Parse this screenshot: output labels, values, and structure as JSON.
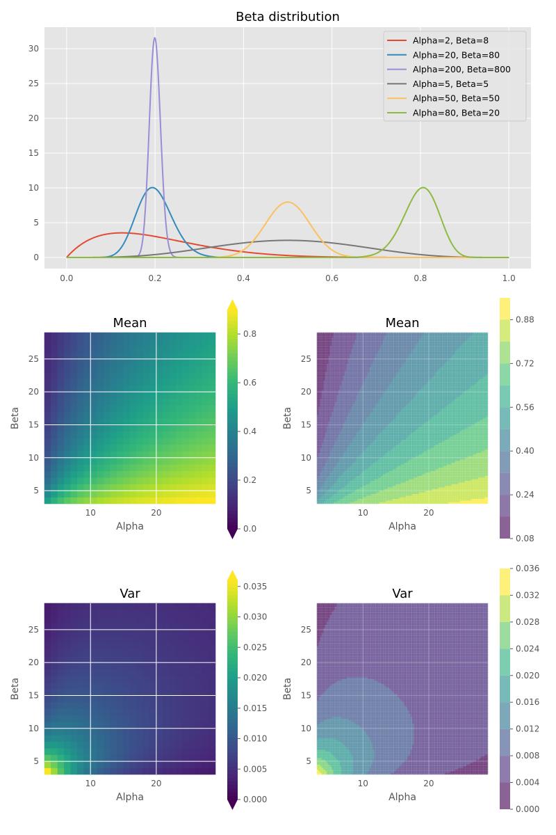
{
  "chart_data": [
    {
      "type": "line",
      "title": "Beta distribution",
      "xlabel": "",
      "ylabel": "",
      "xlim": [
        -0.05,
        1.05
      ],
      "ylim": [
        -1.6,
        33.1
      ],
      "xticks": [
        "0.0",
        "0.2",
        "0.4",
        "0.6",
        "0.8",
        "1.0"
      ],
      "yticks": [
        "0",
        "5",
        "10",
        "15",
        "20",
        "25",
        "30"
      ],
      "grid": true,
      "legend": "top-right",
      "series": [
        {
          "name": "Alpha=2, Beta=8",
          "alpha": 2,
          "beta": 8,
          "color": "#e24a33",
          "peak_y": 3.5
        },
        {
          "name": "Alpha=20, Beta=80",
          "alpha": 20,
          "beta": 80,
          "color": "#348abd",
          "peak_y": 10.0
        },
        {
          "name": "Alpha=200, Beta=800",
          "alpha": 200,
          "beta": 800,
          "color": "#988ed5",
          "peak_y": 31.6
        },
        {
          "name": "Alpha=5, Beta=5",
          "alpha": 5,
          "beta": 5,
          "color": "#777777",
          "peak_y": 2.5
        },
        {
          "name": "Alpha=50, Beta=50",
          "alpha": 50,
          "beta": 50,
          "color": "#fbc15e",
          "peak_y": 8.0
        },
        {
          "name": "Alpha=80, Beta=20",
          "alpha": 80,
          "beta": 20,
          "color": "#8eba42",
          "peak_y": 10.0
        }
      ]
    },
    {
      "type": "heatmap",
      "title": "Mean",
      "xlabel": "Alpha",
      "ylabel": "Beta",
      "xlim": [
        3,
        29
      ],
      "ylim": [
        3,
        29
      ],
      "xticks": [
        "10",
        "20"
      ],
      "yticks": [
        "5",
        "10",
        "15",
        "20",
        "25"
      ],
      "colormap": "viridis",
      "clim": [
        0.0,
        0.9
      ],
      "colorbar_ticks": [
        "0.0",
        "0.2",
        "0.4",
        "0.6",
        "0.8"
      ],
      "colorbar_extend": "both"
    },
    {
      "type": "contour",
      "title": "Mean",
      "xlabel": "Alpha",
      "ylabel": "Beta",
      "xlim": [
        3,
        29
      ],
      "ylim": [
        3,
        29
      ],
      "xticks": [
        "10",
        "20"
      ],
      "yticks": [
        "5",
        "10",
        "15",
        "20",
        "25"
      ],
      "colormap": "viridis",
      "levels": [
        0.08,
        0.16,
        0.24,
        0.32,
        0.4,
        0.48,
        0.56,
        0.64,
        0.72,
        0.8,
        0.88,
        0.96
      ],
      "colorbar_ticks": [
        "0.08",
        "0.24",
        "0.40",
        "0.56",
        "0.72",
        "0.88"
      ]
    },
    {
      "type": "heatmap",
      "title": "Var",
      "xlabel": "Alpha",
      "ylabel": "Beta",
      "xlim": [
        3,
        29
      ],
      "ylim": [
        3,
        29
      ],
      "xticks": [
        "10",
        "20"
      ],
      "yticks": [
        "5",
        "10",
        "15",
        "20",
        "25"
      ],
      "colormap": "viridis",
      "clim": [
        0.0,
        0.036
      ],
      "colorbar_ticks": [
        "0.000",
        "0.005",
        "0.010",
        "0.015",
        "0.020",
        "0.025",
        "0.030",
        "0.035"
      ],
      "colorbar_extend": "both"
    },
    {
      "type": "contour",
      "title": "Var",
      "xlabel": "Alpha",
      "ylabel": "Beta",
      "xlim": [
        3,
        29
      ],
      "ylim": [
        3,
        29
      ],
      "xticks": [
        "10",
        "20"
      ],
      "yticks": [
        "5",
        "10",
        "15",
        "20",
        "25"
      ],
      "colormap": "viridis",
      "levels": [
        0.0,
        0.004,
        0.008,
        0.012,
        0.016,
        0.02,
        0.024,
        0.028,
        0.032,
        0.036
      ],
      "colorbar_ticks": [
        "0.000",
        "0.004",
        "0.008",
        "0.012",
        "0.016",
        "0.020",
        "0.024",
        "0.028",
        "0.032",
        "0.036"
      ]
    }
  ]
}
